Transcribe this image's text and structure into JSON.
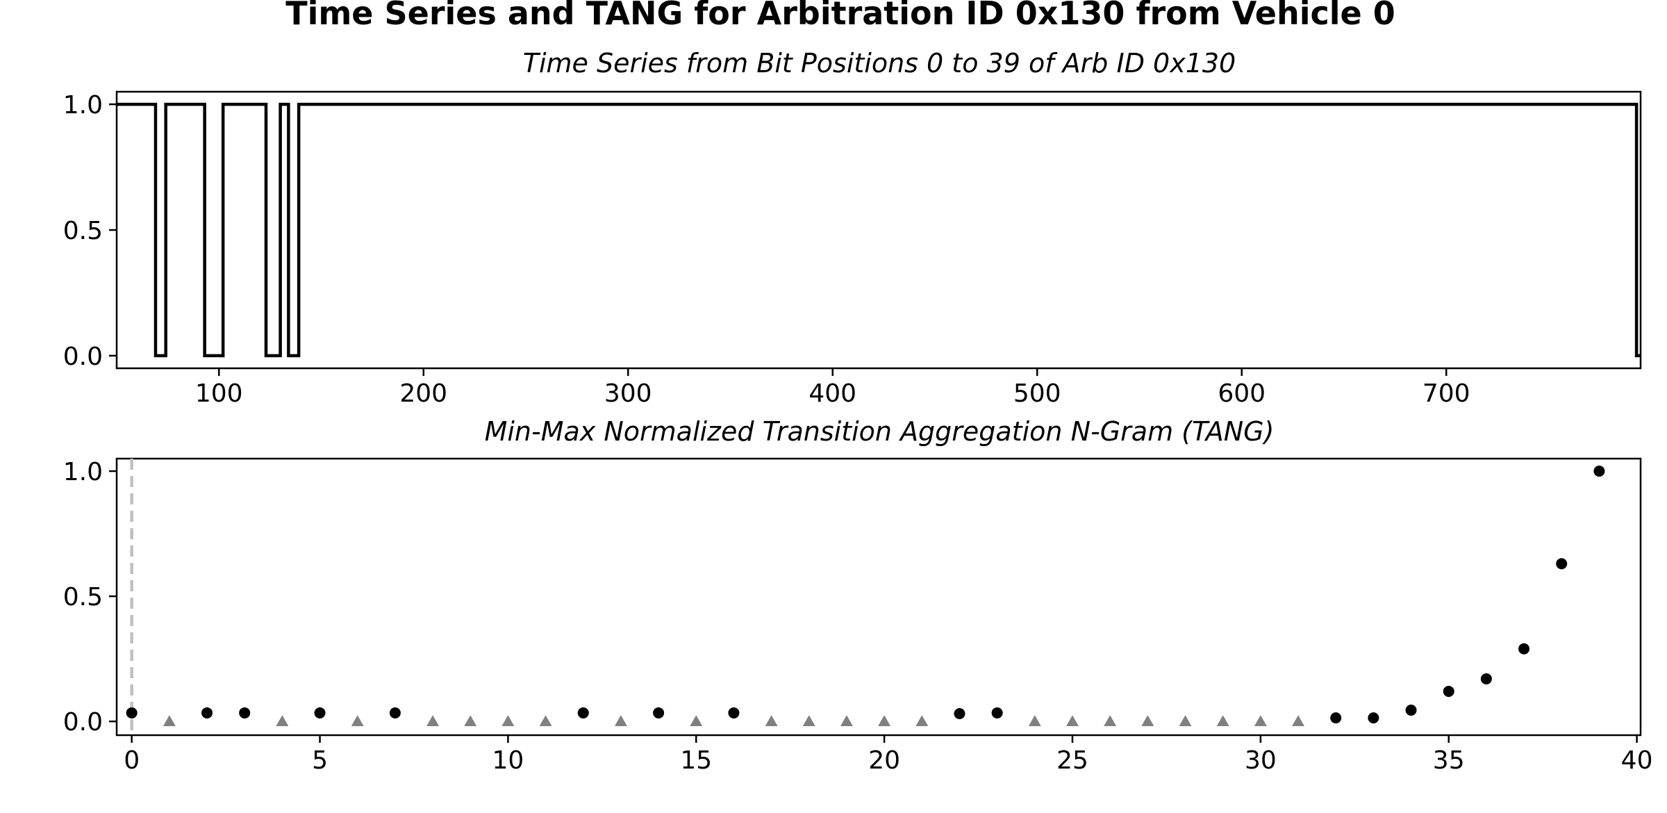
{
  "title": "Time Series and TANG for Arbitration ID 0x130 from Vehicle 0",
  "chart_data": [
    {
      "type": "line",
      "title": "Time Series from Bit Positions 0 to 39 of Arb ID 0x130",
      "xlabel": "",
      "ylabel": "",
      "xlim": [
        50,
        795
      ],
      "ylim": [
        -0.05,
        1.05
      ],
      "xticks": [
        100,
        200,
        300,
        400,
        500,
        600,
        700
      ],
      "xtick_labels": [
        "100",
        "200",
        "300",
        "400",
        "500",
        "600",
        "700"
      ],
      "yticks": [
        0.0,
        0.5,
        1.0
      ],
      "ytick_labels": [
        "0.0",
        "0.5",
        "1.0"
      ],
      "step": "post",
      "color": "#000000",
      "grid": false,
      "series": [
        {
          "x": [
            50,
            69,
            74,
            93,
            102,
            123,
            130,
            134,
            139,
            148,
            793,
            795
          ],
          "y": [
            1,
            0,
            1,
            0,
            1,
            0,
            1,
            0,
            1,
            1,
            0,
            0
          ]
        }
      ]
    },
    {
      "type": "scatter",
      "title": "Min-Max Normalized Transition Aggregation N-Gram (TANG)",
      "xlabel": "",
      "ylabel": "",
      "xlim": [
        -0.4,
        40.1
      ],
      "ylim": [
        -0.055,
        1.05
      ],
      "xticks": [
        0,
        5,
        10,
        15,
        20,
        25,
        30,
        35,
        40
      ],
      "xtick_labels": [
        "0",
        "5",
        "10",
        "15",
        "20",
        "25",
        "30",
        "35",
        "40"
      ],
      "yticks": [
        0.0,
        0.5,
        1.0
      ],
      "ytick_labels": [
        "0.0",
        "0.5",
        "1.0"
      ],
      "vline_x": 0,
      "vline_color": "#c0c0c0",
      "grid": false,
      "series": [
        {
          "marker": "circle",
          "color": "#000000",
          "x": [
            0,
            2,
            3,
            5,
            7,
            12,
            14,
            16,
            22,
            23,
            32,
            33,
            34,
            35,
            36,
            37,
            38,
            39
          ],
          "y": [
            0.034,
            0.034,
            0.034,
            0.034,
            0.034,
            0.034,
            0.034,
            0.034,
            0.031,
            0.034,
            0.014,
            0.014,
            0.045,
            0.12,
            0.17,
            0.29,
            0.63,
            1.0
          ]
        },
        {
          "marker": "triangle",
          "color": "#808080",
          "x": [
            1,
            4,
            6,
            8,
            9,
            10,
            11,
            13,
            15,
            17,
            18,
            19,
            20,
            21,
            24,
            25,
            26,
            27,
            28,
            29,
            30,
            31
          ],
          "y": [
            0,
            0,
            0,
            0,
            0,
            0,
            0,
            0,
            0,
            0,
            0,
            0,
            0,
            0,
            0,
            0,
            0,
            0,
            0,
            0,
            0,
            0
          ]
        }
      ]
    }
  ]
}
